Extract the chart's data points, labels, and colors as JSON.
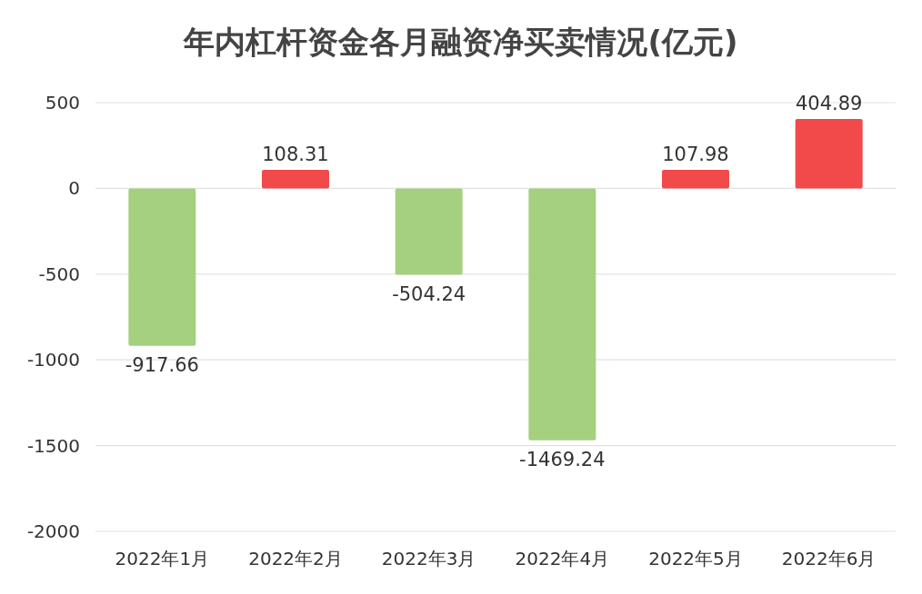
{
  "chart_data": {
    "type": "bar",
    "title": "年内杠杆资金各月融资净买卖情况(亿元)",
    "categories": [
      "2022年1月",
      "2022年2月",
      "2022年3月",
      "2022年4月",
      "2022年5月",
      "2022年6月"
    ],
    "values": [
      -917.66,
      108.31,
      -504.24,
      -1469.24,
      107.98,
      404.89
    ],
    "colors": [
      "#a5d07f",
      "#f24a4a",
      "#a5d07f",
      "#a5d07f",
      "#f24a4a",
      "#f24a4a"
    ],
    "ylim": [
      -2000,
      500
    ],
    "yticks": [
      500,
      0,
      -500,
      -1000,
      -1500,
      -2000
    ],
    "grid": "y",
    "data_labels": true
  }
}
